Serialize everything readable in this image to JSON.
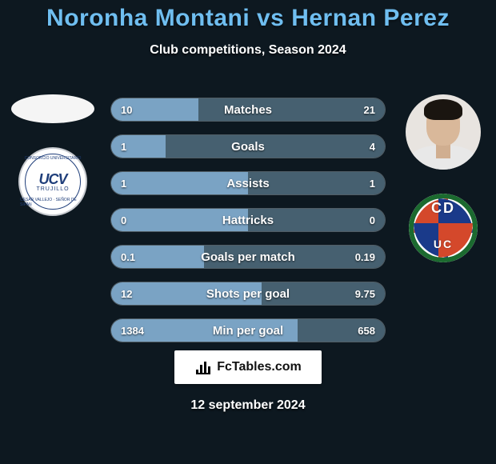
{
  "title": "Noronha Montani vs Hernan Perez",
  "subtitle": "Club competitions, Season 2024",
  "date_text": "12 september 2024",
  "fctables_label": "FcTables.com",
  "colors": {
    "background": "#0d1820",
    "title": "#6fbef0",
    "text": "#ffffff",
    "bar_track": "#2a3a44",
    "bar_left_fill": "#7aa3c4",
    "bar_right_fill": "#466070",
    "badge_bg": "#ffffff"
  },
  "left_club": {
    "main": "UCV",
    "sub": "TRUJILLO",
    "top": "CONSORCIO UNIVERSITARIO",
    "bot": "CESAR VALLEJO · SEÑOR DE SIPAN"
  },
  "right_club": {
    "letters_top": "CD",
    "letters_bot": "UC"
  },
  "stats": [
    {
      "label": "Matches",
      "left_val": "10",
      "right_val": "21",
      "left_pct": 32,
      "right_pct": 68
    },
    {
      "label": "Goals",
      "left_val": "1",
      "right_val": "4",
      "left_pct": 20,
      "right_pct": 80
    },
    {
      "label": "Assists",
      "left_val": "1",
      "right_val": "1",
      "left_pct": 50,
      "right_pct": 50
    },
    {
      "label": "Hattricks",
      "left_val": "0",
      "right_val": "0",
      "left_pct": 50,
      "right_pct": 50
    },
    {
      "label": "Goals per match",
      "left_val": "0.1",
      "right_val": "0.19",
      "left_pct": 34,
      "right_pct": 66
    },
    {
      "label": "Shots per goal",
      "left_val": "12",
      "right_val": "9.75",
      "left_pct": 55,
      "right_pct": 45
    },
    {
      "label": "Min per goal",
      "left_val": "1384",
      "right_val": "658",
      "left_pct": 68,
      "right_pct": 32
    }
  ]
}
